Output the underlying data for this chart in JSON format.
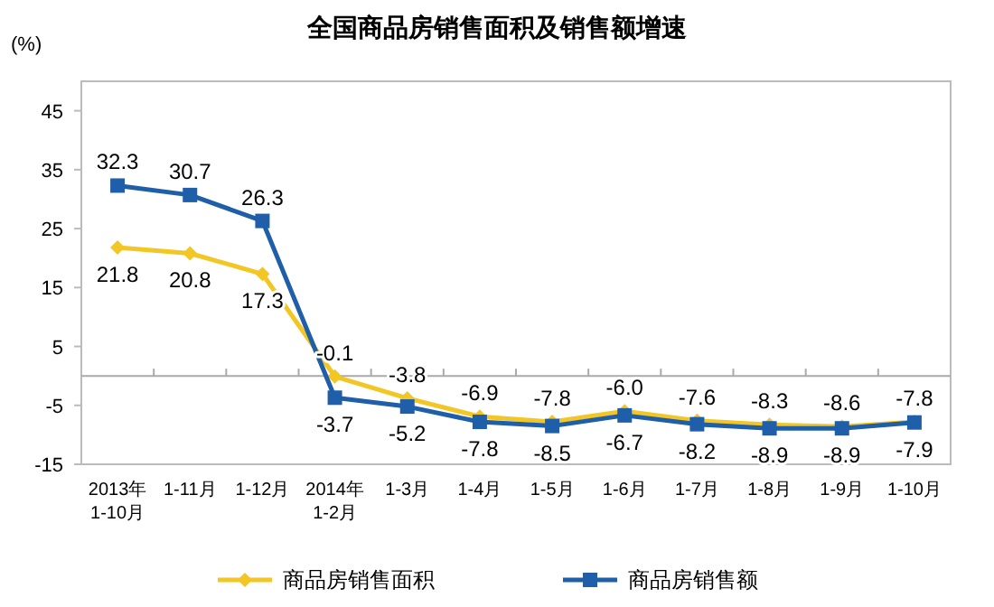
{
  "chart_data": {
    "type": "line",
    "title": "全国商品房销售面积及销售额增速",
    "ylabel": "(%)",
    "categories": [
      "2013年\n1-10月",
      "1-11月",
      "1-12月",
      "2014年\n1-2月",
      "1-3月",
      "1-4月",
      "1-5月",
      "1-6月",
      "1-7月",
      "1-8月",
      "1-9月",
      "1-10月"
    ],
    "series": [
      {
        "name": "商品房销售面积",
        "color": "#f2c624",
        "marker": "diamond",
        "values": [
          21.8,
          20.8,
          17.3,
          -0.1,
          -3.8,
          -6.9,
          -7.8,
          -6.0,
          -7.6,
          -8.3,
          -8.6,
          -7.8
        ],
        "value_labels": [
          "21.8",
          "20.8",
          "17.3",
          "-0.1",
          "-3.8",
          "-6.9",
          "-7.8",
          "-6.0",
          "-7.6",
          "-8.3",
          "-8.6",
          "-7.8"
        ]
      },
      {
        "name": "商品房销售额",
        "color": "#1f5ea8",
        "marker": "square",
        "values": [
          32.3,
          30.7,
          26.3,
          -3.7,
          -5.2,
          -7.8,
          -8.5,
          -6.7,
          -8.2,
          -8.9,
          -8.9,
          -7.9
        ],
        "value_labels": [
          "32.3",
          "30.7",
          "26.3",
          "-3.7",
          "-5.2",
          "-7.8",
          "-8.5",
          "-6.7",
          "-8.2",
          "-8.9",
          "-8.9",
          "-7.9"
        ]
      }
    ],
    "ylim": [
      -15,
      50
    ],
    "yticks": [
      -15,
      -5,
      5,
      15,
      25,
      35,
      45
    ],
    "grid": false,
    "legend": "bottom",
    "line_style": "solid"
  }
}
